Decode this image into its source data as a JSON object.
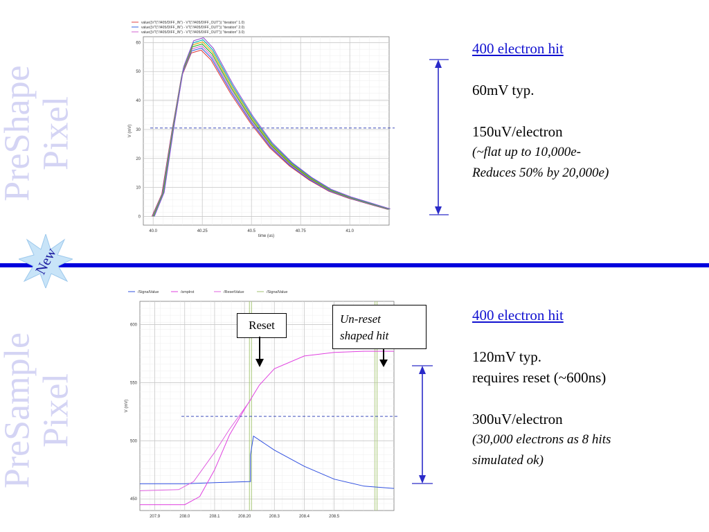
{
  "side_titles": {
    "top": [
      "PreShape",
      "Pixel"
    ],
    "bottom": [
      "PreSample",
      "Pixel"
    ]
  },
  "badge": {
    "label": "New",
    "color": "#c8e4f8",
    "text_color": "#1a1aa0"
  },
  "colors": {
    "divider": "#0000dd",
    "side_title": "#d4d4f4",
    "link": "#1010d0",
    "arrow": "#2a2ac8"
  },
  "notes_top": {
    "heading": "400 electron hit",
    "line1": "60mV typ.",
    "line2": "150uV/electron",
    "italic1": "(~flat up to 10,000e-",
    "italic2": "Reduces 50% by 20,000e)"
  },
  "notes_bottom": {
    "heading": "400 electron hit",
    "line1": "120mV typ.",
    "line2": "requires reset (~600ns)",
    "line3": "300uV/electron",
    "italic1": "(30,000 electrons as 8 hits",
    "italic2": "simulated ok)"
  },
  "callouts": {
    "reset": "Reset",
    "unreset_line1": "Un-reset",
    "unreset_line2": "shaped hit"
  },
  "chart_data": [
    {
      "type": "line",
      "legend": [
        "value((VT(\"/I405/DIFF_IN\") - VT(\"/I405/DIFF_OUT\")) \"iteration\" 1.0)",
        "value((VT(\"/I405/DIFF_IN\") - VT(\"/I405/DIFF_OUT\")) \"iteration\" 2.0)",
        "value((VT(\"/I405/DIFF_IN\") - VT(\"/I405/DIFF_OUT\")) \"iteration\" 3.0)"
      ],
      "xlabel": "time (us)",
      "ylabel": "V (mV)",
      "xlim": [
        39.95,
        41.2
      ],
      "ylim": [
        -3,
        62
      ],
      "xticks": [
        40.0,
        40.25,
        40.5,
        40.75,
        41.0
      ],
      "xtick_labels": [
        "40.0",
        "40.25",
        "40.5",
        "40.75",
        "41.0"
      ],
      "yticks": [
        0,
        10,
        20,
        30,
        40,
        50,
        60
      ],
      "ytick_labels": [
        "0",
        "10",
        "20",
        "30",
        "40",
        "50",
        "60"
      ],
      "threshold_y": 30.5,
      "series_colors": [
        "#e04040",
        "#3060e0",
        "#d060d0",
        "#20b020",
        "#e0a000",
        "#00b0b0",
        "#9050d0"
      ],
      "series": [
        {
          "x": [
            40.0,
            40.05,
            40.1,
            40.15,
            40.2,
            40.25,
            40.3,
            40.35,
            40.4,
            40.5,
            40.6,
            40.7,
            40.8,
            40.9,
            41.0,
            41.1,
            41.2
          ],
          "y": [
            0,
            8,
            30,
            50,
            58.5,
            59.5,
            56,
            50,
            44,
            33.5,
            24.5,
            18,
            13,
            9,
            6.5,
            4.5,
            2.5
          ]
        }
      ],
      "grid": true
    },
    {
      "type": "line",
      "legend": [
        "/SignalValue",
        "/smplrst",
        "/ResetValue",
        "/SignalValue"
      ],
      "xlabel": "time (us)",
      "ylabel": "V (mV)",
      "xlim": [
        207.85,
        208.7
      ],
      "ylim": [
        440,
        620
      ],
      "xticks": [
        207.9,
        208.0,
        208.1,
        208.2,
        208.3,
        208.4,
        208.5
      ],
      "xtick_labels": [
        "207.9",
        "208.0",
        "208.1",
        "208.20",
        "208.3",
        "208.4",
        "208.5"
      ],
      "yticks": [
        450,
        500,
        550,
        600
      ],
      "ytick_labels": [
        "450",
        "500",
        "550",
        "600"
      ],
      "threshold_y": 521,
      "series_colors": [
        "#3050e0",
        "#e040e0",
        "#e060e0",
        "#a0c070"
      ],
      "series": [
        {
          "name": "/ResetValue",
          "x": [
            207.85,
            208.0,
            208.1,
            208.22,
            208.22,
            208.23,
            208.3,
            208.4,
            208.5,
            208.6,
            208.7
          ],
          "y": [
            463,
            463,
            464,
            465,
            488,
            504,
            492,
            478,
            467,
            461,
            459
          ]
        },
        {
          "name": "/SignalValue",
          "x": [
            207.85,
            208.0,
            208.05,
            208.1,
            208.15,
            208.2,
            208.25,
            208.3,
            208.4,
            208.5,
            208.6,
            208.7
          ],
          "y": [
            445,
            445,
            452,
            475,
            505,
            527,
            548,
            562,
            573,
            576,
            577,
            577
          ]
        },
        {
          "name": "/SignalValue",
          "x": [
            207.85,
            207.98,
            208.03,
            208.1,
            208.15,
            208.22
          ],
          "y": [
            457,
            458,
            465,
            490,
            510,
            535
          ]
        }
      ],
      "reset_x": [
        208.22,
        208.64
      ],
      "grid": true
    }
  ]
}
